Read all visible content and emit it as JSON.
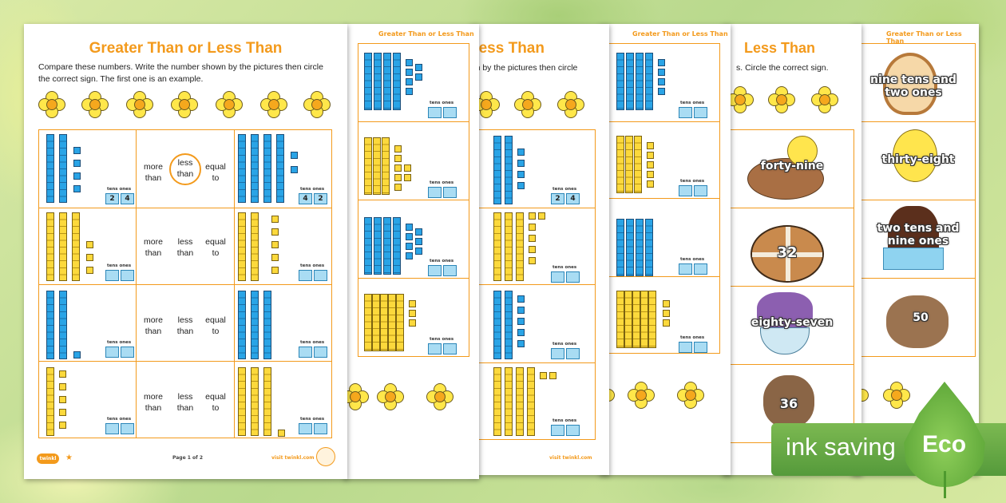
{
  "worksheet": {
    "title": "Greater Than or Less Than",
    "instructions": "Compare these numbers. Write the number shown by the pictures then circle the correct sign. The first one is an example.",
    "column_labels": {
      "tens": "tens",
      "ones": "ones"
    },
    "options": {
      "more": [
        "more",
        "than"
      ],
      "less": [
        "less",
        "than"
      ],
      "equal": [
        "equal",
        "to"
      ]
    },
    "example": {
      "left_tens": "2",
      "left_ones": "4",
      "right_tens": "4",
      "right_ones": "2"
    },
    "page_number": "Page 1 of 2",
    "logo": "twinkl",
    "footer_url": "visit twinkl.com"
  },
  "sheet2": {
    "title": "Greater Than or Less Than"
  },
  "sheet3": {
    "title_fragment": "Less Than",
    "instr_fragment": "wn by the pictures then circle",
    "example_tens": "2",
    "example_ones": "4",
    "footer_url": "visit twinkl.com"
  },
  "sheet4": {
    "title": "Greater Than or Less Than"
  },
  "sheet5": {
    "title_fragment": "Less Than",
    "instr_fragment": "s. Circle the correct sign.",
    "labels": [
      "forty-nine",
      "32",
      "eighty-seven",
      "36"
    ]
  },
  "sheet6": {
    "title": "Greater Than or Less Than",
    "labels": [
      "nine tens and two ones",
      "thirty-eight",
      "two tens and nine ones",
      "50"
    ]
  },
  "eco": {
    "label": "ink saving",
    "badge": "Eco"
  },
  "colors": {
    "accent": "#f39a1c",
    "blue_block": "#2aa4e6",
    "yellow_block": "#fcd93c",
    "eco_green": "#6aae45"
  }
}
